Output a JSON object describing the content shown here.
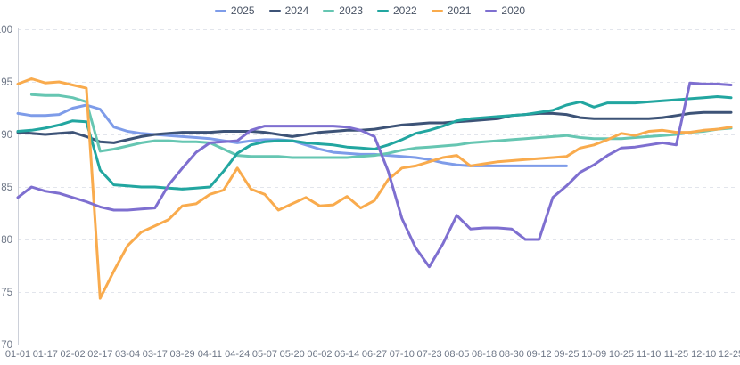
{
  "chart_data": {
    "type": "line",
    "title": "",
    "xlabel": "",
    "ylabel": "",
    "ylim": [
      70,
      100
    ],
    "y_ticks": [
      70,
      75,
      80,
      85,
      90,
      95,
      100
    ],
    "grid": "horizontal dashed gridlines",
    "legend_position": "top-center",
    "x_labels": [
      "01-01",
      "01-17",
      "02-02",
      "02-17",
      "03-04",
      "03-17",
      "03-29",
      "04-11",
      "04-24",
      "05-07",
      "05-20",
      "06-02",
      "06-14",
      "06-27",
      "07-10",
      "07-23",
      "08-05",
      "08-18",
      "08-30",
      "09-12",
      "09-25",
      "10-09",
      "10-25",
      "11-10",
      "11-25",
      "12-10",
      "12-25"
    ],
    "points_per_label": 2,
    "series": [
      {
        "name": "2025",
        "color": "#7e9ce9",
        "values": [
          92.0,
          91.8,
          91.8,
          91.9,
          92.5,
          92.8,
          92.4,
          90.7,
          90.3,
          90.1,
          90.0,
          89.9,
          89.8,
          89.7,
          89.6,
          89.4,
          89.2,
          89.4,
          89.5,
          89.5,
          89.4,
          89.0,
          88.6,
          88.3,
          88.2,
          88.1,
          88.1,
          88.0,
          87.9,
          87.8,
          87.6,
          87.3,
          87.1,
          87.0,
          87.0,
          87.0,
          87.0,
          87.0,
          87.0,
          87.0,
          87.0,
          null,
          null,
          null,
          null,
          null,
          null,
          null,
          null,
          null,
          null,
          null,
          null
        ]
      },
      {
        "name": "2024",
        "color": "#3d5377",
        "values": [
          90.2,
          90.1,
          90.0,
          90.1,
          90.2,
          89.8,
          89.3,
          89.2,
          89.5,
          89.8,
          90.0,
          90.1,
          90.2,
          90.2,
          90.2,
          90.3,
          90.3,
          90.3,
          90.2,
          90.0,
          89.8,
          90.0,
          90.2,
          90.3,
          90.4,
          90.4,
          90.5,
          90.7,
          90.9,
          91.0,
          91.1,
          91.1,
          91.2,
          91.3,
          91.4,
          91.5,
          91.8,
          91.9,
          92.0,
          92.0,
          91.9,
          91.6,
          91.5,
          91.5,
          91.5,
          91.5,
          91.5,
          91.6,
          91.8,
          92.0,
          92.1,
          92.1,
          92.1
        ]
      },
      {
        "name": "2023",
        "color": "#66c6b2",
        "values": [
          null,
          93.8,
          93.7,
          93.7,
          93.5,
          93.1,
          88.4,
          88.6,
          88.9,
          89.2,
          89.4,
          89.4,
          89.3,
          89.3,
          89.2,
          88.6,
          88.0,
          87.9,
          87.9,
          87.9,
          87.8,
          87.8,
          87.8,
          87.8,
          87.8,
          87.9,
          88.0,
          88.2,
          88.5,
          88.7,
          88.8,
          88.9,
          89.0,
          89.2,
          89.3,
          89.4,
          89.5,
          89.6,
          89.7,
          89.8,
          89.9,
          89.7,
          89.6,
          89.6,
          89.6,
          89.7,
          89.8,
          89.9,
          90.0,
          90.2,
          90.3,
          90.5,
          90.6
        ]
      },
      {
        "name": "2022",
        "color": "#22a6a0",
        "values": [
          90.3,
          90.4,
          90.6,
          90.9,
          91.3,
          91.2,
          86.6,
          85.2,
          85.1,
          85.0,
          85.0,
          84.9,
          84.8,
          84.9,
          85.0,
          86.5,
          88.2,
          89.0,
          89.3,
          89.4,
          89.4,
          89.2,
          89.1,
          89.0,
          88.8,
          88.7,
          88.6,
          89.0,
          89.5,
          90.1,
          90.4,
          90.8,
          91.3,
          91.5,
          91.6,
          91.7,
          91.8,
          91.9,
          92.1,
          92.3,
          92.8,
          93.1,
          92.6,
          93.0,
          93.0,
          93.0,
          93.1,
          93.2,
          93.3,
          93.4,
          93.5,
          93.6,
          93.5
        ]
      },
      {
        "name": "2021",
        "color": "#f9ab4d",
        "values": [
          94.8,
          95.3,
          94.9,
          95.0,
          94.7,
          94.4,
          74.4,
          77.0,
          79.4,
          80.7,
          81.3,
          81.9,
          83.2,
          83.4,
          84.3,
          84.7,
          86.8,
          84.8,
          84.3,
          82.8,
          83.4,
          84.0,
          83.2,
          83.3,
          84.1,
          83.0,
          83.7,
          85.7,
          86.8,
          87.0,
          87.4,
          87.8,
          88.0,
          87.0,
          87.2,
          87.4,
          87.5,
          87.6,
          87.7,
          87.8,
          87.9,
          88.7,
          89.0,
          89.5,
          90.1,
          89.9,
          90.3,
          90.4,
          90.2,
          90.2,
          90.4,
          90.5,
          90.7
        ]
      },
      {
        "name": "2020",
        "color": "#7e6fd0",
        "values": [
          84.0,
          85.0,
          84.6,
          84.4,
          84.0,
          83.6,
          83.1,
          82.8,
          82.8,
          82.9,
          83.0,
          85.2,
          86.8,
          88.3,
          89.2,
          89.3,
          89.4,
          90.4,
          90.8,
          90.8,
          90.8,
          90.8,
          90.8,
          90.8,
          90.7,
          90.4,
          89.8,
          86.5,
          82.0,
          79.2,
          77.4,
          79.6,
          82.3,
          81.0,
          81.1,
          81.1,
          81.0,
          80.0,
          80.0,
          84.0,
          85.1,
          86.4,
          87.1,
          88.0,
          88.7,
          88.8,
          89.0,
          89.2,
          89.0,
          94.9,
          94.8,
          94.8,
          94.7
        ]
      }
    ]
  },
  "colors": {
    "background": "#ffffff",
    "gridline": "#e2e5ec",
    "axis_line": "#ccd0d9",
    "axis_label": "#6e7787",
    "legend_text": "#4b5566"
  }
}
